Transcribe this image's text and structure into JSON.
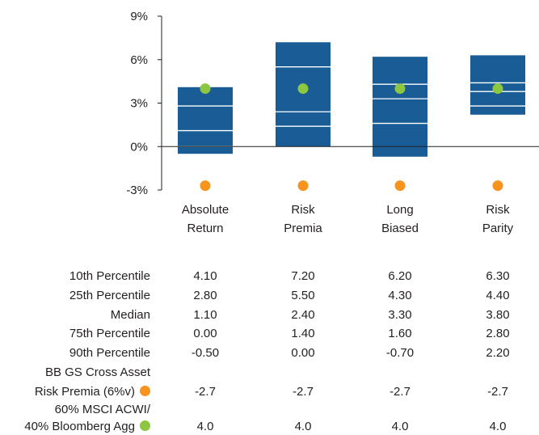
{
  "chart_data": {
    "type": "bar",
    "categories": [
      [
        "Absolute",
        "Return"
      ],
      [
        "Risk",
        "Premia"
      ],
      [
        "Long",
        "Biased"
      ],
      [
        "Risk",
        "Parity"
      ]
    ],
    "yticks": [
      "9%",
      "6%",
      "3%",
      "0%",
      "-3%"
    ],
    "ytick_values": [
      9,
      6,
      3,
      0,
      -3
    ],
    "ylim": [
      -3,
      9
    ],
    "percentiles": [
      {
        "name": "10th Percentile",
        "values": [
          4.1,
          7.2,
          6.2,
          6.3
        ]
      },
      {
        "name": "25th Percentile",
        "values": [
          2.8,
          5.5,
          4.3,
          4.4
        ]
      },
      {
        "name": "Median",
        "values": [
          1.1,
          2.4,
          3.3,
          3.8
        ]
      },
      {
        "name": "75th Percentile",
        "values": [
          0.0,
          1.4,
          1.6,
          2.8
        ]
      },
      {
        "name": "90th Percentile",
        "values": [
          -0.5,
          0.0,
          -0.7,
          2.2
        ]
      }
    ],
    "markers": [
      {
        "name": [
          "BB GS Cross Asset",
          "Risk Premia (6%v)"
        ],
        "color": "#f7941d",
        "values": [
          -2.7,
          -2.7,
          -2.7,
          -2.7
        ]
      },
      {
        "name": [
          "60% MSCI ACWI/",
          "40% Bloomberg Agg"
        ],
        "color": "#8dc63f",
        "values": [
          4.0,
          4.0,
          4.0,
          4.0
        ]
      }
    ],
    "bar_color": "#1a5d96"
  },
  "table": {
    "rows": [
      {
        "label": "10th Percentile",
        "values": [
          "4.10",
          "7.20",
          "6.20",
          "6.30"
        ]
      },
      {
        "label": "25th Percentile",
        "values": [
          "2.80",
          "5.50",
          "4.30",
          "4.40"
        ]
      },
      {
        "label": "Median",
        "values": [
          "1.10",
          "2.40",
          "3.30",
          "3.80"
        ]
      },
      {
        "label": "75th Percentile",
        "values": [
          "0.00",
          "1.40",
          "1.60",
          "2.80"
        ]
      },
      {
        "label": "90th Percentile",
        "values": [
          "-0.50",
          "0.00",
          "-0.70",
          "2.20"
        ]
      },
      {
        "label_line1": "BB GS Cross Asset",
        "label_line2": "Risk Premia (6%v)",
        "values": [
          "-2.7",
          "-2.7",
          "-2.7",
          "-2.7"
        ]
      },
      {
        "label_line1": "60% MSCI ACWI/",
        "label_line2": "40% Bloomberg Agg",
        "values": [
          "4.0",
          "4.0",
          "4.0",
          "4.0"
        ]
      }
    ]
  }
}
